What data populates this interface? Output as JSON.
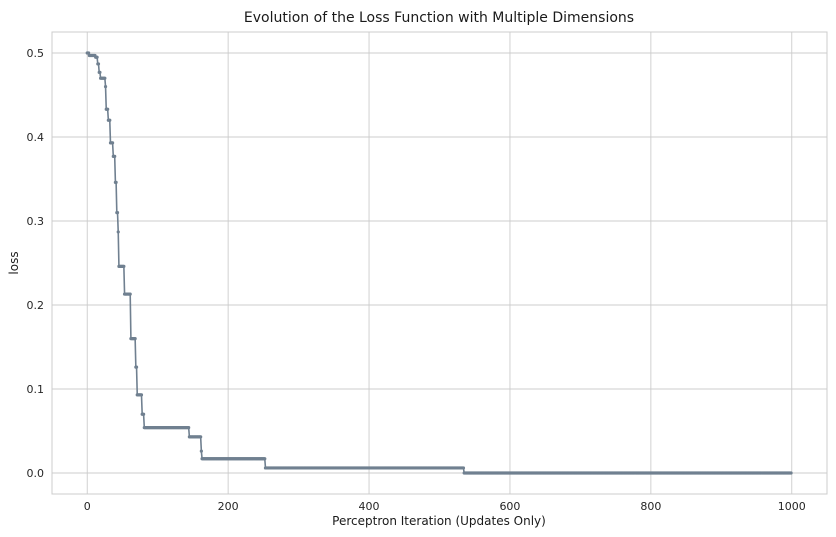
{
  "chart_data": {
    "type": "line",
    "title": "Evolution of the Loss Function with Multiple Dimensions",
    "xlabel": "Perceptron Iteration (Updates Only)",
    "ylabel": "loss",
    "xlim": [
      -50,
      1050
    ],
    "ylim": [
      -0.025,
      0.525
    ],
    "xticks": [
      0,
      200,
      400,
      600,
      800,
      1000
    ],
    "yticks": [
      0.0,
      0.1,
      0.2,
      0.3,
      0.4,
      0.5
    ],
    "xtick_labels": [
      "0",
      "200",
      "400",
      "600",
      "800",
      "1000"
    ],
    "ytick_labels": [
      "0.0",
      "0.1",
      "0.2",
      "0.3",
      "0.4",
      "0.5"
    ],
    "grid": true,
    "color": "#708090",
    "marker": "dot",
    "n_points": 1000,
    "steps": [
      {
        "from": 0,
        "value": 0.5
      },
      {
        "from": 3,
        "value": 0.497
      },
      {
        "from": 12,
        "value": 0.495
      },
      {
        "from": 15,
        "value": 0.487
      },
      {
        "from": 17,
        "value": 0.477
      },
      {
        "from": 19,
        "value": 0.47
      },
      {
        "from": 26,
        "value": 0.46
      },
      {
        "from": 27,
        "value": 0.433
      },
      {
        "from": 30,
        "value": 0.42
      },
      {
        "from": 33,
        "value": 0.393
      },
      {
        "from": 37,
        "value": 0.377
      },
      {
        "from": 40,
        "value": 0.346
      },
      {
        "from": 42,
        "value": 0.31
      },
      {
        "from": 44,
        "value": 0.287
      },
      {
        "from": 45,
        "value": 0.246
      },
      {
        "from": 53,
        "value": 0.213
      },
      {
        "from": 62,
        "value": 0.16
      },
      {
        "from": 69,
        "value": 0.126
      },
      {
        "from": 71,
        "value": 0.093
      },
      {
        "from": 78,
        "value": 0.07
      },
      {
        "from": 81,
        "value": 0.054
      },
      {
        "from": 145,
        "value": 0.043
      },
      {
        "from": 162,
        "value": 0.026
      },
      {
        "from": 163,
        "value": 0.017
      },
      {
        "from": 253,
        "value": 0.006
      },
      {
        "from": 535,
        "value": 0.0
      }
    ]
  }
}
